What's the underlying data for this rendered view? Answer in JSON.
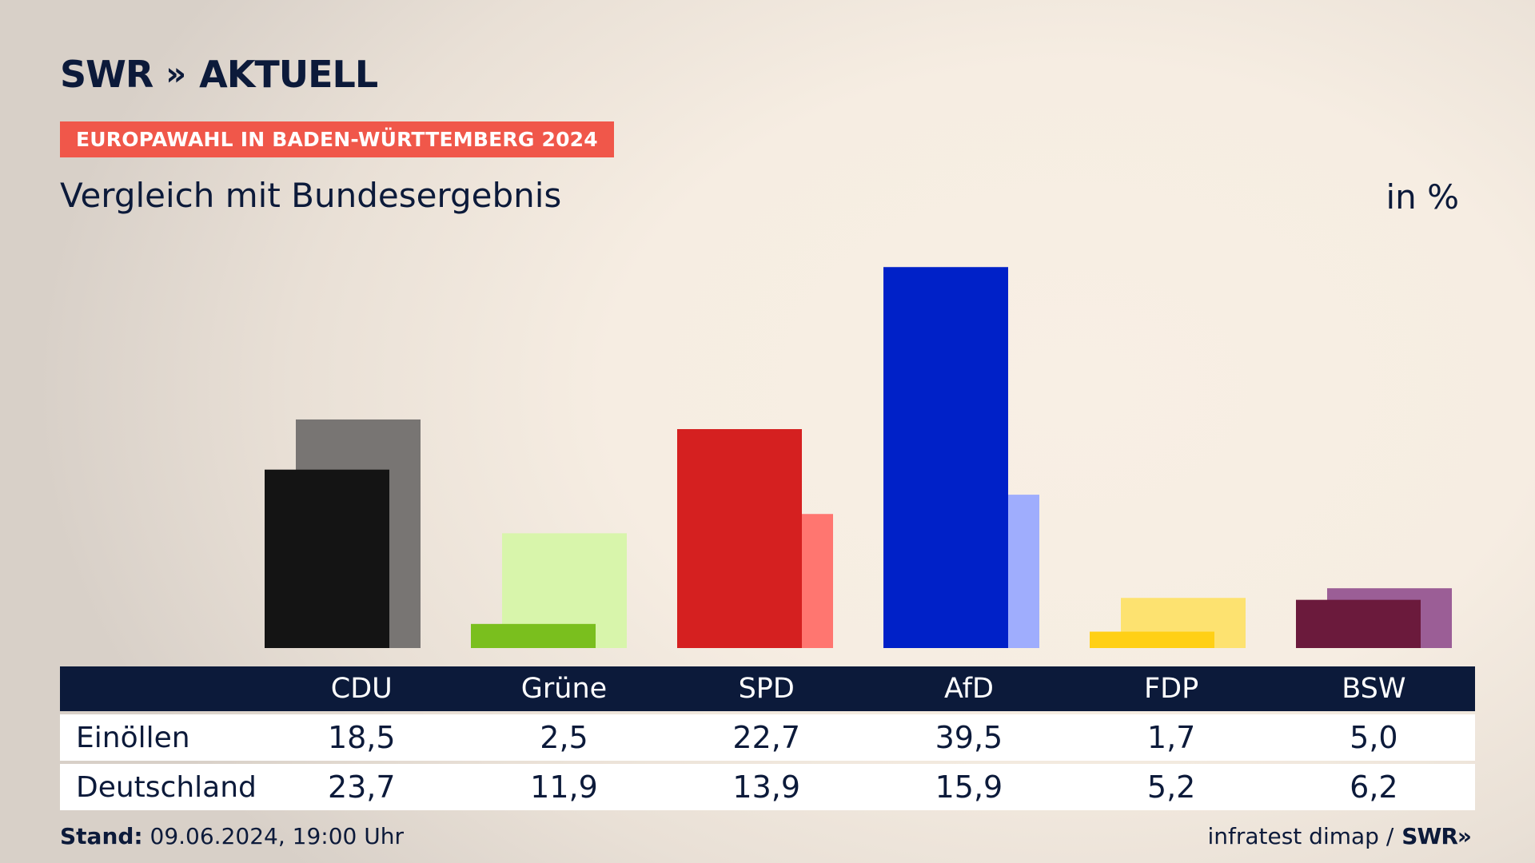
{
  "header": {
    "brand_swr": "SWR",
    "brand_chevrons": "»",
    "brand_aktuell": "AKTUELL",
    "tagline": "EUROPAWAHL IN BADEN-WÜRTTEMBERG 2024",
    "subtitle": "Vergleich mit Bundesergebnis",
    "unit": "in %"
  },
  "table": {
    "row_labels": [
      "Einöllen",
      "Deutschland"
    ]
  },
  "footer": {
    "stand_label": "Stand:",
    "stand_value": " 09.06.2024, 19:00 Uhr",
    "source": "infratest dimap /",
    "source_brand": "SWR",
    "source_chevrons": "»"
  },
  "chart_data": {
    "type": "bar",
    "title": "Vergleich mit Bundesergebnis",
    "ylabel": "",
    "xlabel": "",
    "unit": "in %",
    "ylim": [
      0,
      40
    ],
    "categories": [
      "CDU",
      "Grüne",
      "SPD",
      "AfD",
      "FDP",
      "BSW"
    ],
    "series": [
      {
        "name": "Einöllen",
        "values": [
          18.5,
          2.5,
          22.7,
          39.5,
          1.7,
          5.0
        ],
        "display": [
          "18,5",
          "2,5",
          "22,7",
          "39,5",
          "1,7",
          "5,0"
        ]
      },
      {
        "name": "Deutschland",
        "values": [
          23.7,
          11.9,
          13.9,
          15.9,
          5.2,
          6.2
        ],
        "display": [
          "23,7",
          "11,9",
          "13,9",
          "15,9",
          "5,2",
          "6,2"
        ]
      }
    ],
    "colors": {
      "primary": [
        "#141414",
        "#7abf1e",
        "#d52020",
        "#0021c8",
        "#ffd015",
        "#6b1a3c"
      ],
      "secondary": [
        "#787573",
        "#d8f5ab",
        "#ff7670",
        "#9fadfd",
        "#fde270",
        "#9b5e96"
      ]
    },
    "grid": false,
    "legend": "table-below"
  }
}
